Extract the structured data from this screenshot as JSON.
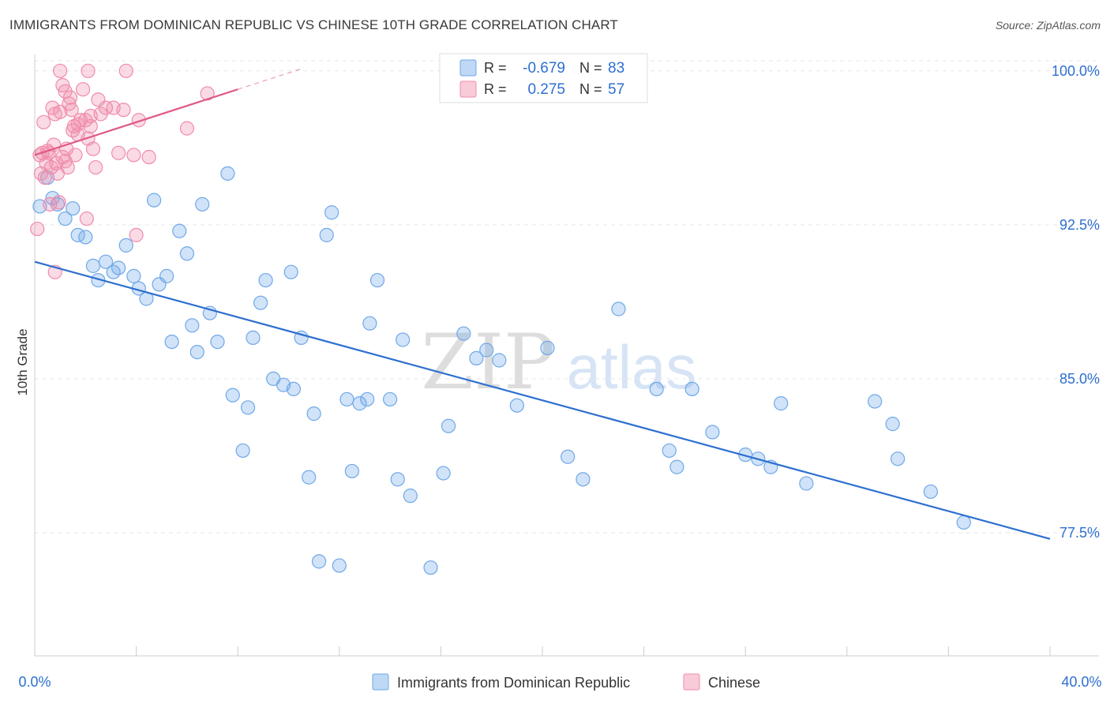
{
  "title": "IMMIGRANTS FROM DOMINICAN REPUBLIC VS CHINESE 10TH GRADE CORRELATION CHART",
  "source": "Source: ZipAtlas.com",
  "watermark": {
    "zip": "ZIP",
    "atlas": "atlas"
  },
  "chart_data": {
    "type": "scatter",
    "ylabel": "10th Grade",
    "xlim": [
      0,
      40
    ],
    "ylim": [
      71.5,
      100.8
    ],
    "x_tick_labels": [
      "0.0%",
      "40.0%"
    ],
    "y_ticks": [
      100.0,
      92.5,
      85.0,
      77.5
    ],
    "y_tick_labels": [
      "100.0%",
      "92.5%",
      "85.0%",
      "77.5%"
    ],
    "grid": true,
    "legend_position": "bottom",
    "stats": [
      {
        "r_label": "R =",
        "r_value": "-0.679",
        "n_label": "N =",
        "n_value": "83",
        "color": "#6fa8e8"
      },
      {
        "r_label": "R =",
        "r_value": "0.275",
        "n_label": "N =",
        "n_value": "57",
        "color": "#f08cab"
      }
    ],
    "series": [
      {
        "name": "Immigrants from Dominican Republic",
        "color": "#6fa8e8",
        "line_color": "#2d6fd0",
        "trend": {
          "x": [
            0,
            40
          ],
          "y": [
            90.7,
            77.2
          ]
        },
        "points": [
          [
            0.2,
            93.4
          ],
          [
            0.5,
            94.8
          ],
          [
            0.7,
            93.8
          ],
          [
            0.9,
            93.5
          ],
          [
            1.2,
            92.8
          ],
          [
            1.5,
            93.3
          ],
          [
            1.7,
            92.0
          ],
          [
            2.0,
            91.9
          ],
          [
            2.3,
            90.5
          ],
          [
            2.5,
            89.8
          ],
          [
            2.8,
            90.7
          ],
          [
            3.1,
            90.2
          ],
          [
            3.3,
            90.4
          ],
          [
            3.6,
            91.5
          ],
          [
            3.9,
            90.0
          ],
          [
            4.1,
            89.4
          ],
          [
            4.4,
            88.9
          ],
          [
            4.7,
            93.7
          ],
          [
            4.9,
            89.6
          ],
          [
            5.2,
            90.0
          ],
          [
            5.4,
            86.8
          ],
          [
            5.7,
            92.2
          ],
          [
            6.0,
            91.1
          ],
          [
            6.2,
            87.6
          ],
          [
            6.4,
            86.3
          ],
          [
            6.6,
            93.5
          ],
          [
            6.9,
            88.2
          ],
          [
            7.2,
            86.8
          ],
          [
            7.6,
            95.0
          ],
          [
            7.8,
            84.2
          ],
          [
            8.2,
            81.5
          ],
          [
            8.4,
            83.6
          ],
          [
            8.6,
            87.0
          ],
          [
            8.9,
            88.7
          ],
          [
            9.1,
            89.8
          ],
          [
            9.4,
            85.0
          ],
          [
            9.8,
            84.7
          ],
          [
            10.1,
            90.2
          ],
          [
            10.2,
            84.5
          ],
          [
            10.5,
            87.0
          ],
          [
            10.8,
            80.2
          ],
          [
            11.0,
            83.3
          ],
          [
            11.2,
            76.1
          ],
          [
            11.5,
            92.0
          ],
          [
            11.7,
            93.1
          ],
          [
            12.0,
            75.9
          ],
          [
            12.3,
            84.0
          ],
          [
            12.5,
            80.5
          ],
          [
            12.8,
            83.8
          ],
          [
            13.1,
            84.0
          ],
          [
            13.2,
            87.7
          ],
          [
            13.5,
            89.8
          ],
          [
            14.0,
            84.0
          ],
          [
            14.3,
            80.1
          ],
          [
            14.5,
            86.9
          ],
          [
            14.8,
            79.3
          ],
          [
            15.6,
            75.8
          ],
          [
            16.1,
            80.4
          ],
          [
            16.3,
            82.7
          ],
          [
            16.9,
            87.2
          ],
          [
            17.4,
            86.0
          ],
          [
            17.8,
            86.4
          ],
          [
            18.3,
            85.9
          ],
          [
            19.0,
            83.7
          ],
          [
            20.2,
            86.5
          ],
          [
            21.0,
            81.2
          ],
          [
            21.6,
            80.1
          ],
          [
            23.0,
            88.4
          ],
          [
            24.5,
            84.5
          ],
          [
            25.0,
            81.5
          ],
          [
            25.3,
            80.7
          ],
          [
            25.9,
            84.5
          ],
          [
            26.7,
            82.4
          ],
          [
            28.0,
            81.3
          ],
          [
            28.5,
            81.1
          ],
          [
            29.0,
            80.7
          ],
          [
            29.4,
            83.8
          ],
          [
            30.4,
            79.9
          ],
          [
            33.1,
            83.9
          ],
          [
            33.8,
            82.8
          ],
          [
            34.0,
            81.1
          ],
          [
            35.3,
            79.5
          ],
          [
            36.6,
            78.0
          ]
        ]
      },
      {
        "name": "Chinese",
        "color": "#f08cab",
        "line_color": "#e05a86",
        "trend": {
          "x": [
            0,
            8
          ],
          "y": [
            95.9,
            99.1
          ]
        },
        "trend_dashed": {
          "x": [
            8,
            10.5
          ],
          "y": [
            99.1,
            100.1
          ]
        },
        "points": [
          [
            0.1,
            92.3
          ],
          [
            0.2,
            95.9
          ],
          [
            0.25,
            95.0
          ],
          [
            0.3,
            96.0
          ],
          [
            0.35,
            97.5
          ],
          [
            0.4,
            94.8
          ],
          [
            0.45,
            95.5
          ],
          [
            0.5,
            96.1
          ],
          [
            0.6,
            93.5
          ],
          [
            0.65,
            95.3
          ],
          [
            0.7,
            98.2
          ],
          [
            0.75,
            96.4
          ],
          [
            0.8,
            97.9
          ],
          [
            0.85,
            95.5
          ],
          [
            0.9,
            95.0
          ],
          [
            0.95,
            93.6
          ],
          [
            1.0,
            98.0
          ],
          [
            1.1,
            95.8
          ],
          [
            1.2,
            99.0
          ],
          [
            1.25,
            96.2
          ],
          [
            1.3,
            95.3
          ],
          [
            1.35,
            98.4
          ],
          [
            1.4,
            98.7
          ],
          [
            1.5,
            97.1
          ],
          [
            1.55,
            97.3
          ],
          [
            1.6,
            95.9
          ],
          [
            1.7,
            96.9
          ],
          [
            1.8,
            97.6
          ],
          [
            1.9,
            99.1
          ],
          [
            2.0,
            97.6
          ],
          [
            2.05,
            92.8
          ],
          [
            2.1,
            96.7
          ],
          [
            2.2,
            97.8
          ],
          [
            2.3,
            96.2
          ],
          [
            2.4,
            95.3
          ],
          [
            2.5,
            98.6
          ],
          [
            2.6,
            97.9
          ],
          [
            2.8,
            98.2
          ],
          [
            3.1,
            98.2
          ],
          [
            3.3,
            96.0
          ],
          [
            3.5,
            98.1
          ],
          [
            3.6,
            100.0
          ],
          [
            3.9,
            95.9
          ],
          [
            4.0,
            92.0
          ],
          [
            4.1,
            97.6
          ],
          [
            4.5,
            95.8
          ],
          [
            6.0,
            97.2
          ],
          [
            6.8,
            98.9
          ],
          [
            1.0,
            100.0
          ],
          [
            2.1,
            100.0
          ],
          [
            0.8,
            90.2
          ],
          [
            1.1,
            99.3
          ],
          [
            1.7,
            97.4
          ],
          [
            2.2,
            97.3
          ],
          [
            1.2,
            95.6
          ],
          [
            0.55,
            96.0
          ],
          [
            1.45,
            98.1
          ]
        ]
      }
    ]
  }
}
